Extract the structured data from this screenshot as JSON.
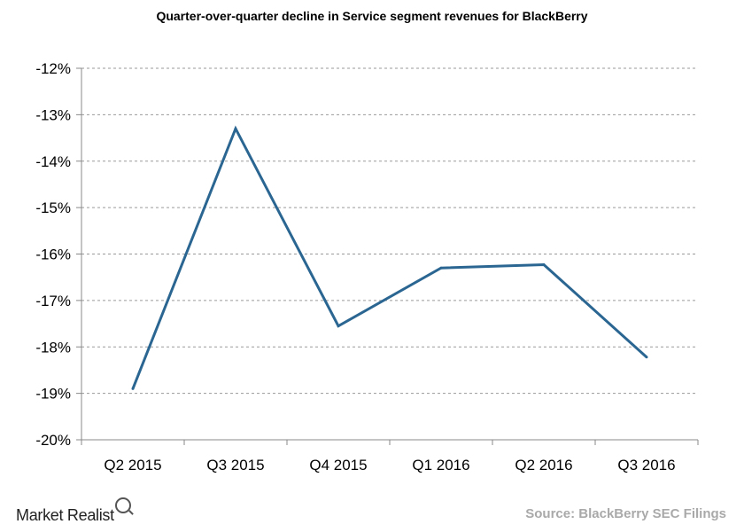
{
  "chart_data": {
    "type": "line",
    "title": "Quarter-over-quarter decline in Service segment revenues for BlackBerry",
    "categories": [
      "Q2 2015",
      "Q3 2015",
      "Q4 2015",
      "Q1 2016",
      "Q2 2016",
      "Q3 2016"
    ],
    "series": [
      {
        "values": [
          -18.9,
          -13.3,
          -17.55,
          -16.3,
          -16.23,
          -18.22
        ]
      }
    ],
    "y_ticks": [
      "-12%",
      "-13%",
      "-14%",
      "-15%",
      "-16%",
      "-17%",
      "-18%",
      "-19%",
      "-20%"
    ],
    "ylim": [
      -20,
      -12
    ],
    "grid": true,
    "line_color": "#2a6691"
  },
  "branding": {
    "logo_text": "Market Realist",
    "source": "Source: BlackBerry SEC Filings"
  }
}
